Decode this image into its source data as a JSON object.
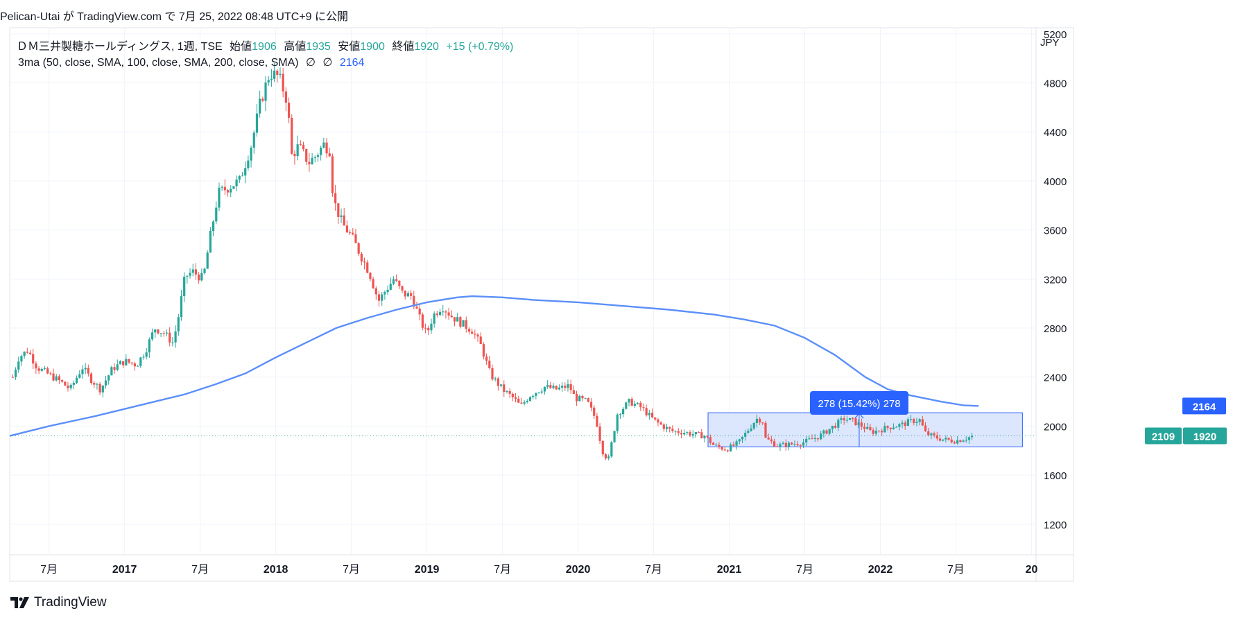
{
  "attribution": "Pelican-Utai が TradingView.com で 7月 25, 2022 08:48 UTC+9 に公開",
  "symbol": "ＤＭ三井製糖ホールディングス, 1週, TSE",
  "ohlc": {
    "open_label": "始値",
    "open": "1906",
    "high_label": "高値",
    "high": "1935",
    "low_label": "安値",
    "low": "1900",
    "close_label": "終値",
    "close": "1920",
    "change": "+15 (+0.79%)"
  },
  "indicator": {
    "label": "3ma (50, close, SMA, 100, close, SMA, 200, close, SMA)",
    "na1": "∅",
    "na2": "∅",
    "value": "2164"
  },
  "currency": "JPY",
  "measure_label": "278 (15.42%) 278",
  "price_tags": {
    "sma": "2164",
    "range_left": "2109",
    "last": "1920"
  },
  "brand": "TradingView",
  "colors": {
    "up": "#26a69a",
    "down": "#ef5350",
    "sma": "#5b8ff9",
    "measure": "#2962ff",
    "measure_fill": "#d6e2fd"
  },
  "chart_data": {
    "type": "candlestick",
    "ylim": [
      950,
      5250
    ],
    "y_ticks": [
      1200,
      1600,
      2000,
      2400,
      2800,
      3200,
      3600,
      4000,
      4400,
      4800,
      5200
    ],
    "x_ticks": [
      {
        "t": 2016.5,
        "label": "7月",
        "bold": false
      },
      {
        "t": 2017.0,
        "label": "2017",
        "bold": true
      },
      {
        "t": 2017.5,
        "label": "7月",
        "bold": false
      },
      {
        "t": 2018.0,
        "label": "2018",
        "bold": true
      },
      {
        "t": 2018.5,
        "label": "7月",
        "bold": false
      },
      {
        "t": 2019.0,
        "label": "2019",
        "bold": true
      },
      {
        "t": 2019.5,
        "label": "7月",
        "bold": false
      },
      {
        "t": 2020.0,
        "label": "2020",
        "bold": true
      },
      {
        "t": 2020.5,
        "label": "7月",
        "bold": false
      },
      {
        "t": 2021.0,
        "label": "2021",
        "bold": true
      },
      {
        "t": 2021.5,
        "label": "7月",
        "bold": false
      },
      {
        "t": 2022.0,
        "label": "2022",
        "bold": true
      },
      {
        "t": 2022.5,
        "label": "7月",
        "bold": false
      },
      {
        "t": 2023.0,
        "label": "20",
        "bold": true
      }
    ],
    "xlim": [
      2016.24,
      2023.03
    ],
    "price_path": [
      [
        2016.26,
        2400
      ],
      [
        2016.3,
        2560
      ],
      [
        2016.36,
        2620
      ],
      [
        2016.42,
        2480
      ],
      [
        2016.5,
        2420
      ],
      [
        2016.58,
        2360
      ],
      [
        2016.64,
        2300
      ],
      [
        2016.72,
        2480
      ],
      [
        2016.78,
        2380
      ],
      [
        2016.84,
        2300
      ],
      [
        2016.92,
        2470
      ],
      [
        2017.0,
        2530
      ],
      [
        2017.08,
        2500
      ],
      [
        2017.14,
        2620
      ],
      [
        2017.2,
        2800
      ],
      [
        2017.26,
        2760
      ],
      [
        2017.32,
        2680
      ],
      [
        2017.35,
        2850
      ],
      [
        2017.4,
        3220
      ],
      [
        2017.45,
        3260
      ],
      [
        2017.52,
        3200
      ],
      [
        2017.56,
        3500
      ],
      [
        2017.62,
        3900
      ],
      [
        2017.7,
        3960
      ],
      [
        2017.76,
        4000
      ],
      [
        2017.84,
        4300
      ],
      [
        2017.9,
        4650
      ],
      [
        2017.96,
        4880
      ],
      [
        2018.02,
        4850
      ],
      [
        2018.08,
        4640
      ],
      [
        2018.1,
        4200
      ],
      [
        2018.15,
        4280
      ],
      [
        2018.22,
        4150
      ],
      [
        2018.26,
        4200
      ],
      [
        2018.32,
        4300
      ],
      [
        2018.36,
        4250
      ],
      [
        2018.38,
        3850
      ],
      [
        2018.44,
        3650
      ],
      [
        2018.5,
        3550
      ],
      [
        2018.56,
        3400
      ],
      [
        2018.62,
        3250
      ],
      [
        2018.68,
        3020
      ],
      [
        2018.74,
        3130
      ],
      [
        2018.78,
        3200
      ],
      [
        2018.84,
        3080
      ],
      [
        2018.9,
        3060
      ],
      [
        2018.96,
        2850
      ],
      [
        2019.0,
        2750
      ],
      [
        2019.04,
        2900
      ],
      [
        2019.1,
        2980
      ],
      [
        2019.16,
        2900
      ],
      [
        2019.24,
        2830
      ],
      [
        2019.3,
        2780
      ],
      [
        2019.36,
        2650
      ],
      [
        2019.42,
        2420
      ],
      [
        2019.5,
        2300
      ],
      [
        2019.58,
        2220
      ],
      [
        2019.62,
        2160
      ],
      [
        2019.68,
        2250
      ],
      [
        2019.78,
        2320
      ],
      [
        2019.86,
        2300
      ],
      [
        2019.94,
        2330
      ],
      [
        2019.98,
        2230
      ],
      [
        2020.06,
        2200
      ],
      [
        2020.12,
        2050
      ],
      [
        2020.16,
        1800
      ],
      [
        2020.2,
        1720
      ],
      [
        2020.26,
        2100
      ],
      [
        2020.34,
        2200
      ],
      [
        2020.42,
        2150
      ],
      [
        2020.5,
        2050
      ],
      [
        2020.56,
        2000
      ],
      [
        2020.62,
        1960
      ],
      [
        2020.7,
        1950
      ],
      [
        2020.78,
        1930
      ],
      [
        2020.84,
        1920
      ],
      [
        2020.9,
        1840
      ],
      [
        2020.98,
        1810
      ],
      [
        2021.06,
        1860
      ],
      [
        2021.12,
        1960
      ],
      [
        2021.18,
        2060
      ],
      [
        2021.22,
        2050
      ],
      [
        2021.24,
        1900
      ],
      [
        2021.32,
        1840
      ],
      [
        2021.4,
        1850
      ],
      [
        2021.5,
        1870
      ],
      [
        2021.6,
        1920
      ],
      [
        2021.68,
        1990
      ],
      [
        2021.76,
        2060
      ],
      [
        2021.82,
        2040
      ],
      [
        2021.88,
        2000
      ],
      [
        2021.94,
        1950
      ],
      [
        2022.0,
        1970
      ],
      [
        2022.08,
        2000
      ],
      [
        2022.14,
        2010
      ],
      [
        2022.2,
        2040
      ],
      [
        2022.26,
        2050
      ],
      [
        2022.3,
        1940
      ],
      [
        2022.36,
        1910
      ],
      [
        2022.42,
        1890
      ],
      [
        2022.5,
        1880
      ],
      [
        2022.56,
        1900
      ],
      [
        2022.62,
        1920
      ]
    ],
    "sma_path": [
      [
        2016.24,
        1920
      ],
      [
        2016.5,
        2000
      ],
      [
        2016.8,
        2080
      ],
      [
        2017.0,
        2140
      ],
      [
        2017.2,
        2200
      ],
      [
        2017.4,
        2260
      ],
      [
        2017.6,
        2340
      ],
      [
        2017.8,
        2430
      ],
      [
        2018.0,
        2560
      ],
      [
        2018.2,
        2680
      ],
      [
        2018.4,
        2800
      ],
      [
        2018.6,
        2880
      ],
      [
        2018.8,
        2950
      ],
      [
        2019.0,
        3010
      ],
      [
        2019.2,
        3050
      ],
      [
        2019.3,
        3060
      ],
      [
        2019.5,
        3050
      ],
      [
        2019.7,
        3030
      ],
      [
        2020.0,
        3010
      ],
      [
        2020.3,
        2980
      ],
      [
        2020.6,
        2950
      ],
      [
        2020.9,
        2910
      ],
      [
        2021.1,
        2870
      ],
      [
        2021.3,
        2820
      ],
      [
        2021.5,
        2720
      ],
      [
        2021.7,
        2580
      ],
      [
        2021.9,
        2400
      ],
      [
        2022.05,
        2300
      ],
      [
        2022.2,
        2250
      ],
      [
        2022.4,
        2200
      ],
      [
        2022.55,
        2170
      ],
      [
        2022.65,
        2164
      ]
    ],
    "measure": {
      "t_start": 2020.86,
      "t_end": 2022.94,
      "y_low": 1831,
      "y_high": 2109,
      "arrow_t": 2021.86
    }
  }
}
